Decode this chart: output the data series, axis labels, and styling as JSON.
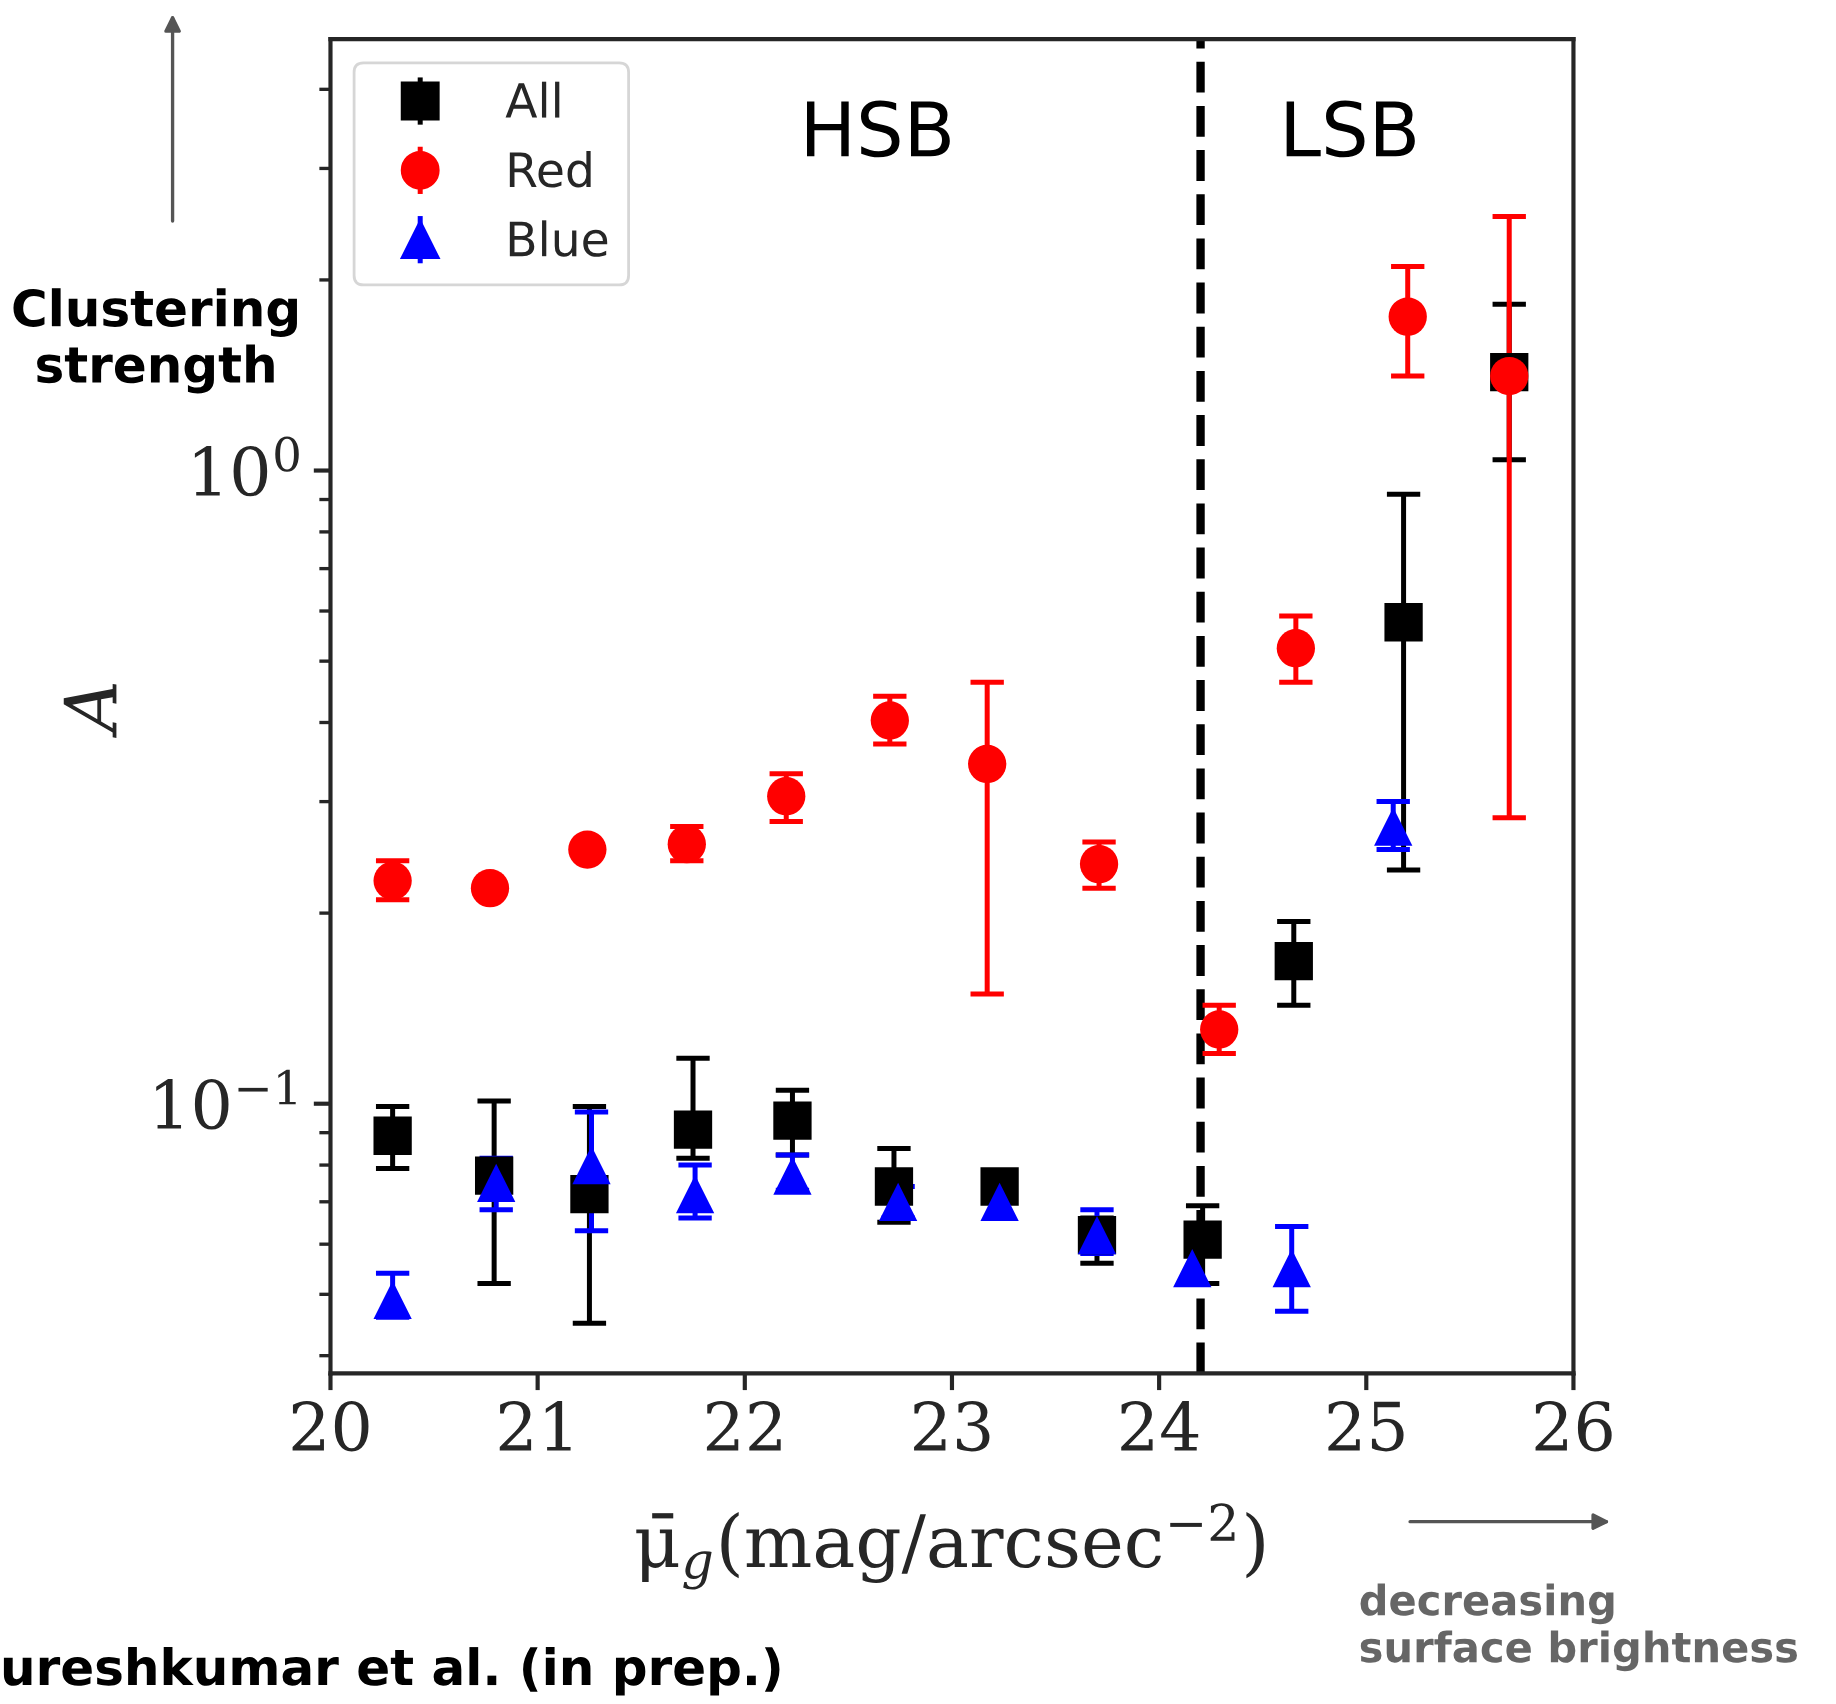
{
  "chart_data": {
    "type": "scatter",
    "xlabel": "μ̄$_{g}$(mag/arcsec$^{−2}$)",
    "ylabel": "A",
    "xlim": [
      20,
      26
    ],
    "xticks": [
      20,
      21,
      22,
      23,
      24,
      25,
      26
    ],
    "ylim": [
      0.0375,
      4.8
    ],
    "yticks": [
      {
        "value": 0.1,
        "label": "10$^{−1}$"
      },
      {
        "value": 1,
        "label": "10$^{0}$"
      }
    ],
    "log": "y",
    "grid": false,
    "legend": "top left",
    "series": [
      {
        "name": "All",
        "color": "#000000",
        "marker": "square",
        "x": [
          20.3,
          20.79,
          21.25,
          21.75,
          22.23,
          22.72,
          23.23,
          23.7,
          24.21,
          24.65,
          25.18,
          25.69
        ],
        "values": [
          0.089,
          0.077,
          0.072,
          0.091,
          0.094,
          0.074,
          0.074,
          0.062,
          0.061,
          0.168,
          0.576,
          1.43
        ],
        "errors": [
          [
            0.079,
            0.099
          ],
          [
            0.052,
            0.101
          ],
          [
            0.045,
            0.099
          ],
          [
            0.082,
            0.118
          ],
          [
            0.083,
            0.105
          ],
          [
            0.065,
            0.085
          ],
          null,
          [
            0.056,
            0.066
          ],
          [
            0.052,
            0.069
          ],
          [
            0.143,
            0.194
          ],
          [
            0.234,
            0.917
          ],
          [
            1.04,
            1.83
          ]
        ]
      },
      {
        "name": "Red",
        "color": "#ff0000",
        "marker": "circle",
        "x": [
          20.3,
          20.77,
          21.24,
          21.72,
          22.2,
          22.7,
          23.17,
          23.71,
          24.29,
          24.66,
          25.2,
          25.69
        ],
        "values": [
          0.225,
          0.219,
          0.252,
          0.257,
          0.306,
          0.403,
          0.344,
          0.239,
          0.131,
          0.524,
          1.75,
          1.41
        ],
        "errors": [
          [
            0.21,
            0.242
          ],
          null,
          null,
          [
            0.242,
            0.274
          ],
          [
            0.279,
            0.332
          ],
          [
            0.37,
            0.44
          ],
          [
            0.149,
            0.463
          ],
          [
            0.219,
            0.259
          ],
          [
            0.12,
            0.143
          ],
          [
            0.463,
            0.589
          ],
          [
            1.41,
            2.1
          ],
          [
            0.283,
            2.52
          ]
        ]
      },
      {
        "name": "Blue",
        "color": "#0000ff",
        "marker": "triangle",
        "x": [
          20.3,
          20.8,
          21.26,
          21.76,
          22.23,
          22.74,
          23.23,
          23.7,
          24.16,
          24.64,
          25.13
        ],
        "values": [
          0.049,
          0.075,
          0.08,
          0.072,
          0.077,
          0.07,
          0.07,
          0.062,
          0.055,
          0.055,
          0.274
        ],
        "errors": [
          [
            0.046,
            0.054
          ],
          [
            0.068,
            0.082
          ],
          [
            0.063,
            0.097
          ],
          [
            0.066,
            0.08
          ],
          [
            0.073,
            0.083
          ],
          [
            0.066,
            0.074
          ],
          null,
          [
            0.058,
            0.068
          ],
          null,
          [
            0.047,
            0.064
          ],
          [
            0.252,
            0.3
          ]
        ]
      }
    ],
    "ref_lines": [
      {
        "axis": "x",
        "value": 24.2,
        "color": "#000000",
        "line_style": "dashed"
      }
    ],
    "annotations": [
      "HSB",
      "LSB",
      "Clustering\nstrength",
      "decreasing\nsurface brightness",
      "ureshkumar et al. (in prep.)"
    ]
  }
}
